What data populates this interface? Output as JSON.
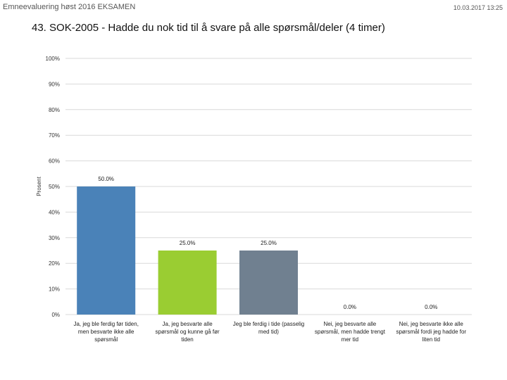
{
  "header": {
    "left": "Emneevaluering høst 2016 EKSAMEN",
    "right": "10.03.2017 13:25"
  },
  "chart_data": {
    "type": "bar",
    "title": "43. SOK-2005 - Hadde du nok tid til å svare på alle spørsmål/deler (4 timer)",
    "ylabel": "Prosent",
    "ylim": [
      0,
      100
    ],
    "yticks": [
      0,
      10,
      20,
      30,
      40,
      50,
      60,
      70,
      80,
      90,
      100
    ],
    "ytick_labels": [
      "0%",
      "10%",
      "20%",
      "30%",
      "40%",
      "50%",
      "60%",
      "70%",
      "80%",
      "90%",
      "100%"
    ],
    "grid": true,
    "categories": [
      [
        "Ja, jeg ble ferdig før tiden,",
        "men besvarte ikke alle",
        "spørsmål"
      ],
      [
        "Ja, jeg besvarte alle",
        "spørsmål og kunne gå før",
        "tiden"
      ],
      [
        "Jeg ble ferdig i tide (passelig",
        "med tid)"
      ],
      [
        "Nei, jeg besvarte alle",
        "spørsmål, men hadde trengt",
        "mer tid"
      ],
      [
        "Nei, jeg besvarte ikke alle",
        "spørsmål fordi jeg hadde for",
        "liten tid"
      ]
    ],
    "values": [
      50.0,
      25.0,
      25.0,
      0.0,
      0.0
    ],
    "data_labels": [
      "50.0%",
      "25.0%",
      "25.0%",
      "0.0%",
      "0.0%"
    ],
    "colors": [
      "#4a82b8",
      "#9acd32",
      "#708090",
      "#c0504d",
      "#8064a2"
    ]
  }
}
